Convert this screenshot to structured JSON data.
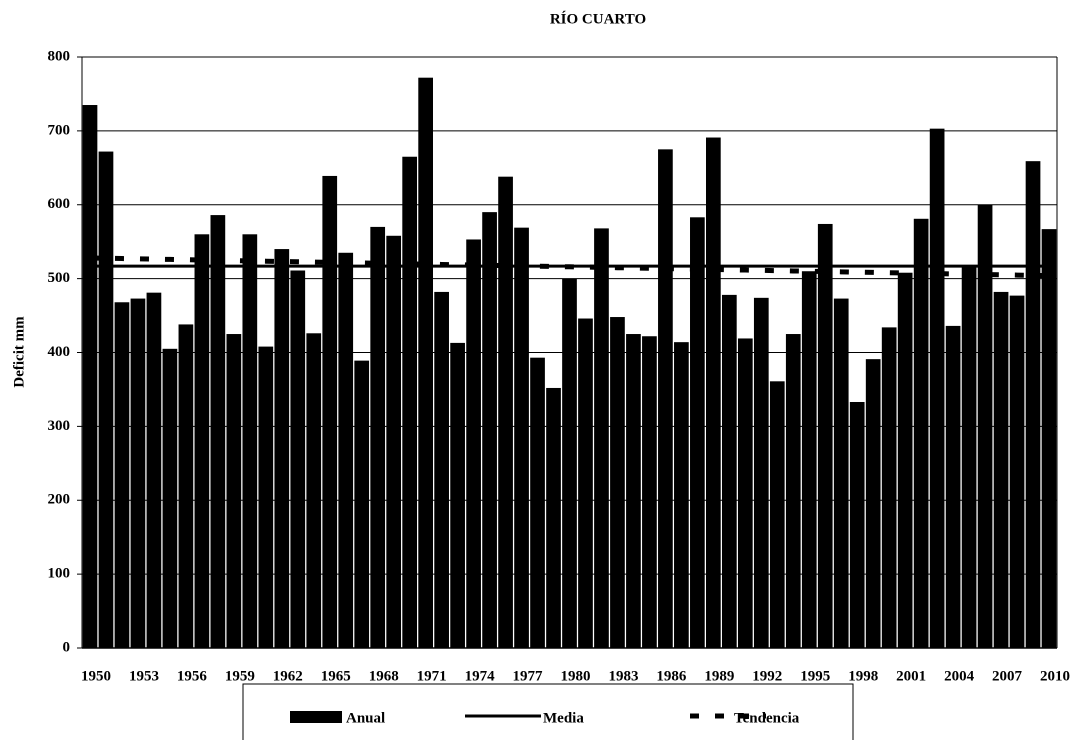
{
  "chart_data": {
    "type": "bar",
    "title": "RÍO CUARTO",
    "y_label": "Deficit mm",
    "categories": [
      1950,
      null,
      null,
      1953,
      null,
      null,
      1956,
      null,
      null,
      1959,
      null,
      null,
      1962,
      null,
      null,
      1965,
      null,
      null,
      1968,
      null,
      null,
      1971,
      null,
      null,
      1974,
      null,
      null,
      1977,
      null,
      null,
      1980,
      null,
      null,
      1983,
      null,
      null,
      1986,
      null,
      null,
      1989,
      null,
      null,
      1992,
      null,
      null,
      1995,
      null,
      null,
      1998,
      null,
      null,
      2001,
      null,
      null,
      2004,
      null,
      null,
      2007,
      null,
      null,
      2010
    ],
    "series": [
      {
        "name": "Anual",
        "type": "bar",
        "color": "#000000",
        "values": [
          735,
          672,
          468,
          473,
          481,
          405,
          438,
          560,
          586,
          425,
          560,
          408,
          540,
          511,
          426,
          639,
          535,
          389,
          570,
          558,
          665,
          772,
          482,
          413,
          553,
          590,
          638,
          569,
          393,
          352,
          500,
          446,
          568,
          448,
          425,
          422,
          675,
          414,
          583,
          691,
          478,
          419,
          474,
          361,
          425,
          510,
          574,
          473,
          333,
          391,
          434,
          508,
          581,
          703,
          436,
          516,
          600,
          482,
          477,
          659,
          567
        ]
      },
      {
        "name": "Media",
        "type": "line",
        "color": "#000000",
        "dashed": false,
        "values": [
          517,
          517,
          517,
          517,
          517,
          517,
          517,
          517,
          517,
          517,
          517,
          517,
          517,
          517,
          517,
          517,
          517,
          517,
          517,
          517,
          517,
          517,
          517,
          517,
          517,
          517,
          517,
          517,
          517,
          517,
          517,
          517,
          517,
          517,
          517,
          517,
          517,
          517,
          517,
          517,
          517,
          517,
          517,
          517,
          517,
          517,
          517,
          517,
          517,
          517,
          517,
          517,
          517,
          517,
          517,
          517,
          517,
          517,
          517,
          517,
          517
        ]
      },
      {
        "name": "Tendencia",
        "type": "line",
        "color": "#000000",
        "dashed": true,
        "values": [
          528,
          527.6,
          527.2,
          526.8,
          526.4,
          526,
          525.6,
          525.2,
          524.8,
          524.4,
          524,
          523.6,
          523.2,
          522.8,
          522.4,
          522,
          521.6,
          521.2,
          520.8,
          520.4,
          520,
          519.6,
          519.2,
          518.8,
          518.4,
          518,
          517.6,
          517.2,
          516.8,
          516.4,
          516,
          515.6,
          515.2,
          514.8,
          514.4,
          514,
          513.6,
          513.2,
          512.8,
          512.4,
          512,
          511.6,
          511.2,
          510.8,
          510.4,
          510,
          509.6,
          509.2,
          508.8,
          508.4,
          508,
          507.6,
          507.2,
          506.8,
          506.4,
          506,
          505.6,
          505.2,
          504.8,
          504.4,
          504
        ]
      }
    ],
    "ylim": [
      0,
      800
    ],
    "yticks": [
      0,
      100,
      200,
      300,
      400,
      500,
      600,
      700,
      800
    ],
    "grid": true,
    "legend": "bottom"
  }
}
